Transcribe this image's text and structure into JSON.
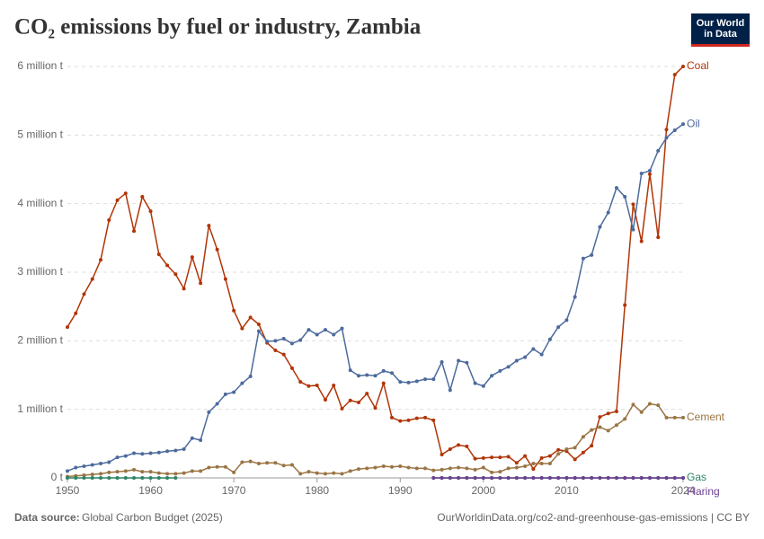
{
  "chart_data": {
    "type": "line",
    "title": "CO₂ emissions by fuel or industry, Zambia",
    "logo": "Our World in Data",
    "source_label": "Data source:",
    "source": "Global Carbon Budget (2025)",
    "url": "OurWorldinData.org/co2-and-greenhouse-gas-emissions | CC BY",
    "x": [
      1950,
      1951,
      1952,
      1953,
      1954,
      1955,
      1956,
      1957,
      1958,
      1959,
      1960,
      1961,
      1962,
      1963,
      1964,
      1965,
      1966,
      1967,
      1968,
      1969,
      1970,
      1971,
      1972,
      1973,
      1974,
      1975,
      1976,
      1977,
      1978,
      1979,
      1980,
      1981,
      1982,
      1983,
      1984,
      1985,
      1986,
      1987,
      1988,
      1989,
      1990,
      1991,
      1992,
      1993,
      1994,
      1995,
      1996,
      1997,
      1998,
      1999,
      2000,
      2001,
      2002,
      2003,
      2004,
      2005,
      2006,
      2007,
      2008,
      2009,
      2010,
      2011,
      2012,
      2013,
      2014,
      2015,
      2016,
      2017,
      2018,
      2019,
      2020,
      2021,
      2022,
      2023,
      2024
    ],
    "xlim": [
      1950,
      2024
    ],
    "xticks": [
      1950,
      1960,
      1970,
      1980,
      1990,
      2000,
      2010,
      2024
    ],
    "ylim": [
      0,
      6
    ],
    "yticks": [
      {
        "value": 0,
        "label": "0 t"
      },
      {
        "value": 1,
        "label": "1 million t"
      },
      {
        "value": 2,
        "label": "2 million t"
      },
      {
        "value": 3,
        "label": "3 million t"
      },
      {
        "value": 4,
        "label": "4 million t"
      },
      {
        "value": 5,
        "label": "5 million t"
      },
      {
        "value": 6,
        "label": "6 million t"
      }
    ],
    "grid": true,
    "series": [
      {
        "name": "Coal",
        "color": "#b13507",
        "values": [
          2.2,
          2.4,
          2.68,
          2.9,
          3.18,
          3.76,
          4.05,
          4.15,
          3.6,
          4.1,
          3.89,
          3.26,
          3.1,
          2.97,
          2.76,
          3.22,
          2.84,
          3.68,
          3.33,
          2.9,
          2.44,
          2.18,
          2.34,
          2.24,
          1.97,
          1.86,
          1.8,
          1.6,
          1.4,
          1.34,
          1.35,
          1.14,
          1.35,
          1.01,
          1.13,
          1.1,
          1.23,
          1.02,
          1.38,
          0.88,
          0.83,
          0.84,
          0.87,
          0.88,
          0.84,
          0.34,
          0.42,
          0.48,
          0.46,
          0.28,
          0.29,
          0.3,
          0.3,
          0.31,
          0.22,
          0.32,
          0.13,
          0.29,
          0.32,
          0.41,
          0.39,
          0.27,
          0.37,
          0.47,
          0.89,
          0.94,
          0.97,
          2.52,
          3.99,
          3.45,
          4.43,
          3.51,
          5.08,
          5.88,
          6.0
        ]
      },
      {
        "name": "Oil",
        "color": "#4c6a9c",
        "values": [
          0.1,
          0.15,
          0.17,
          0.19,
          0.21,
          0.23,
          0.3,
          0.32,
          0.36,
          0.35,
          0.36,
          0.37,
          0.39,
          0.4,
          0.42,
          0.58,
          0.55,
          0.96,
          1.08,
          1.22,
          1.25,
          1.38,
          1.48,
          2.14,
          1.99,
          2.0,
          2.03,
          1.96,
          2.01,
          2.16,
          2.09,
          2.16,
          2.09,
          2.18,
          1.57,
          1.49,
          1.5,
          1.49,
          1.56,
          1.53,
          1.4,
          1.39,
          1.41,
          1.44,
          1.44,
          1.69,
          1.28,
          1.71,
          1.68,
          1.38,
          1.34,
          1.49,
          1.56,
          1.62,
          1.71,
          1.76,
          1.88,
          1.8,
          2.02,
          2.2,
          2.3,
          2.64,
          3.2,
          3.25,
          3.66,
          3.87,
          4.23,
          4.1,
          3.62,
          4.44,
          4.48,
          4.77,
          4.96,
          5.07,
          5.16
        ]
      },
      {
        "name": "Cement",
        "color": "#9a7443",
        "values": [
          0.02,
          0.03,
          0.04,
          0.05,
          0.06,
          0.08,
          0.09,
          0.1,
          0.12,
          0.09,
          0.09,
          0.07,
          0.06,
          0.06,
          0.07,
          0.1,
          0.1,
          0.15,
          0.16,
          0.16,
          0.08,
          0.23,
          0.24,
          0.21,
          0.22,
          0.22,
          0.18,
          0.19,
          0.06,
          0.09,
          0.07,
          0.06,
          0.07,
          0.06,
          0.1,
          0.13,
          0.14,
          0.15,
          0.17,
          0.16,
          0.17,
          0.15,
          0.14,
          0.14,
          0.11,
          0.12,
          0.14,
          0.15,
          0.14,
          0.12,
          0.15,
          0.08,
          0.09,
          0.14,
          0.15,
          0.17,
          0.21,
          0.21,
          0.21,
          0.35,
          0.42,
          0.44,
          0.6,
          0.7,
          0.74,
          0.69,
          0.77,
          0.86,
          1.07,
          0.96,
          1.08,
          1.06,
          0.88,
          0.88,
          0.88
        ]
      },
      {
        "name": "Gas",
        "color": "#2c8465",
        "values": [
          0,
          0,
          0,
          0,
          0,
          0,
          0,
          0,
          0,
          0,
          0,
          0,
          0,
          0,
          null,
          null,
          null,
          null,
          null,
          null,
          null,
          null,
          null,
          null,
          null,
          null,
          null,
          null,
          null,
          null,
          null,
          null,
          null,
          null,
          null,
          null,
          null,
          null,
          null,
          null,
          null,
          null,
          null,
          null,
          0,
          0,
          0,
          0,
          0,
          0,
          0,
          0,
          0,
          0,
          0,
          0,
          0,
          0,
          0,
          0,
          0,
          0,
          0,
          0,
          0,
          0,
          0,
          0,
          0,
          0,
          0,
          0,
          0,
          0,
          0
        ]
      },
      {
        "name": "Flaring",
        "color": "#6d3e91",
        "values": [
          null,
          null,
          null,
          null,
          null,
          null,
          null,
          null,
          null,
          null,
          null,
          null,
          null,
          null,
          null,
          null,
          null,
          null,
          null,
          null,
          null,
          null,
          null,
          null,
          null,
          null,
          null,
          null,
          null,
          null,
          null,
          null,
          null,
          null,
          null,
          null,
          null,
          null,
          null,
          null,
          null,
          null,
          null,
          null,
          0,
          0,
          0,
          0,
          0,
          0,
          0,
          0,
          0,
          0,
          0,
          0,
          0,
          0,
          0,
          0,
          0,
          0,
          0,
          0,
          0,
          0,
          0,
          0,
          0,
          0,
          0,
          0,
          0,
          0,
          0
        ]
      }
    ]
  }
}
